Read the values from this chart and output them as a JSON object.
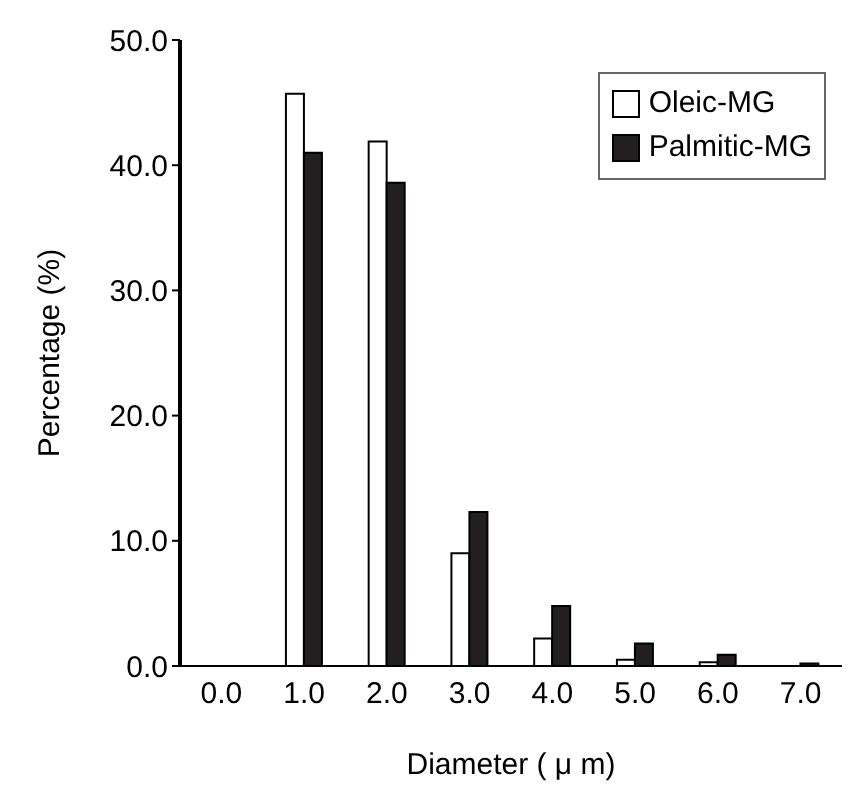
{
  "chart_data": {
    "type": "bar",
    "xlabel": "Diameter ( μ m)",
    "ylabel": "Percentage (%)",
    "categories": [
      "0.0",
      "1.0",
      "2.0",
      "3.0",
      "4.0",
      "5.0",
      "6.0",
      "7.0"
    ],
    "series": [
      {
        "name": "Oleic-MG",
        "color": "#ffffff",
        "values": [
          0,
          45.7,
          41.9,
          9.0,
          2.2,
          0.5,
          0.3,
          0
        ]
      },
      {
        "name": "Palmitic-MG",
        "color": "#231f20",
        "values": [
          0,
          41.0,
          38.6,
          12.3,
          4.8,
          1.8,
          0.9,
          0.2
        ]
      }
    ],
    "ylim": [
      0,
      50
    ],
    "yticks": [
      {
        "value": 0,
        "label": "0.0"
      },
      {
        "value": 10,
        "label": "10.0"
      },
      {
        "value": 20,
        "label": "20.0"
      },
      {
        "value": 30,
        "label": "30.0"
      },
      {
        "value": 40,
        "label": "40.0"
      },
      {
        "value": 50,
        "label": "50.0"
      }
    ],
    "grid": false,
    "legend": "top right"
  }
}
